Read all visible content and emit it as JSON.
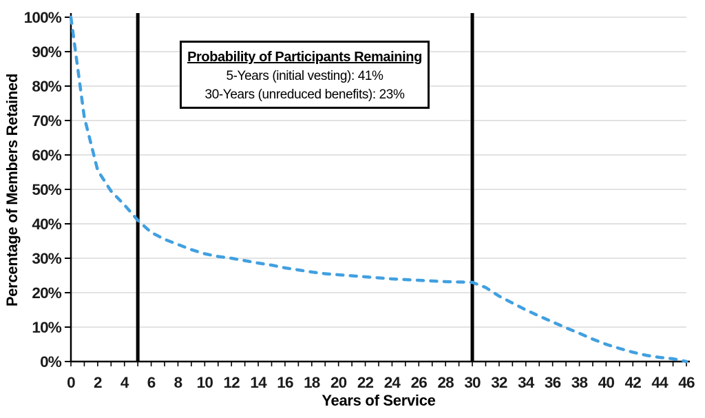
{
  "chart_data": {
    "type": "line",
    "title": "",
    "xlabel": "Years of Service",
    "ylabel": "Percentage of Members Retained",
    "xlim": [
      0,
      46
    ],
    "ylim": [
      0,
      100
    ],
    "grid": "horizontal",
    "legend_position": "none",
    "line_color": "#41A0E0",
    "line_style": "dashed",
    "gridline_color": "#D9D9D9",
    "axis_color": "#000000",
    "tick_label_color": "#1a1a1a",
    "reference_line_color": "#000000",
    "reference_lines_x": [
      5,
      30
    ],
    "x_tick_minor_step": 1,
    "x_tick_labels": [
      "0",
      "2",
      "4",
      "6",
      "8",
      "10",
      "12",
      "14",
      "16",
      "18",
      "20",
      "22",
      "24",
      "26",
      "28",
      "30",
      "32",
      "34",
      "36",
      "38",
      "40",
      "42",
      "44",
      "46"
    ],
    "y_tick_labels": [
      "0%",
      "10%",
      "20%",
      "30%",
      "40%",
      "50%",
      "60%",
      "70%",
      "80%",
      "90%",
      "100%"
    ],
    "x": [
      0,
      1,
      2,
      3,
      4,
      5,
      6,
      7,
      8,
      9,
      10,
      11,
      12,
      13,
      14,
      15,
      16,
      17,
      18,
      19,
      20,
      21,
      22,
      23,
      24,
      25,
      26,
      27,
      28,
      29,
      30,
      31,
      32,
      33,
      34,
      35,
      36,
      37,
      38,
      39,
      40,
      41,
      42,
      43,
      44,
      45,
      46
    ],
    "series": [
      {
        "name": "Percentage of Members Retained",
        "values": [
          100,
          71,
          55.5,
          49.5,
          45.5,
          41,
          37.5,
          35.5,
          34,
          32.5,
          31.3,
          30.5,
          30,
          29.3,
          28.6,
          28,
          27.2,
          26.6,
          26,
          25.5,
          25.2,
          24.9,
          24.6,
          24.3,
          24,
          23.8,
          23.6,
          23.4,
          23.2,
          23.1,
          23,
          21.5,
          19,
          17,
          15,
          13.2,
          11.5,
          9.8,
          8.2,
          6.5,
          5,
          3.8,
          2.7,
          1.8,
          1.2,
          0.8,
          0
        ]
      }
    ],
    "annotations": {
      "box_title": "Probability of Participants Remaining",
      "box_line_1": "5-Years (initial vesting): 41%",
      "box_line_2": "30-Years (unreduced benefits): 23%",
      "vesting_year": 5,
      "vesting_probability": "41%",
      "unreduced_year": 30,
      "unreduced_probability": "23%"
    }
  }
}
